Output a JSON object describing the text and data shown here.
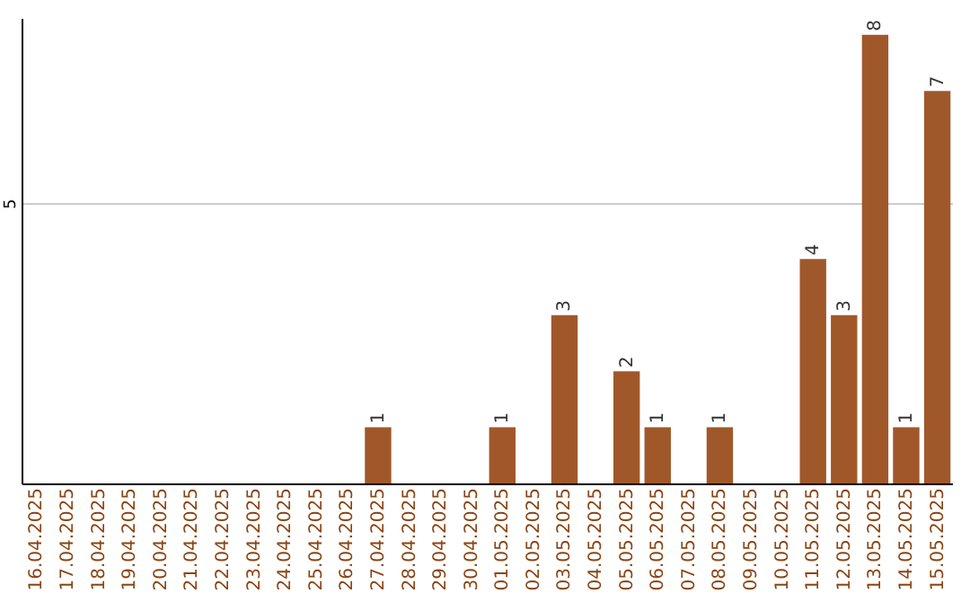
{
  "chart_data": {
    "type": "bar",
    "categories": [
      "16.04.2025",
      "17.04.2025",
      "18.04.2025",
      "19.04.2025",
      "20.04.2025",
      "21.04.2025",
      "22.04.2025",
      "23.04.2025",
      "24.04.2025",
      "25.04.2025",
      "26.04.2025",
      "27.04.2025",
      "28.04.2025",
      "29.04.2025",
      "30.04.2025",
      "01.05.2025",
      "02.05.2025",
      "03.05.2025",
      "04.05.2025",
      "05.05.2025",
      "06.05.2025",
      "07.05.2025",
      "08.05.2025",
      "09.05.2025",
      "10.05.2025",
      "11.05.2025",
      "12.05.2025",
      "13.05.2025",
      "14.05.2025",
      "15.05.2025"
    ],
    "values": [
      0,
      0,
      0,
      0,
      0,
      0,
      0,
      0,
      0,
      0,
      0,
      1,
      0,
      0,
      0,
      1,
      0,
      3,
      0,
      2,
      1,
      0,
      1,
      0,
      0,
      4,
      3,
      8,
      1,
      7
    ],
    "color": "#a0582a",
    "ylim": [
      0,
      8.3
    ],
    "yticks": [
      5
    ],
    "value_labels": [
      null,
      null,
      null,
      null,
      null,
      null,
      null,
      null,
      null,
      null,
      null,
      "1",
      null,
      null,
      null,
      "1",
      null,
      "3",
      null,
      "2",
      "1",
      null,
      "1",
      null,
      null,
      "4",
      "3",
      "8",
      "1",
      "7"
    ],
    "grid": "y"
  }
}
